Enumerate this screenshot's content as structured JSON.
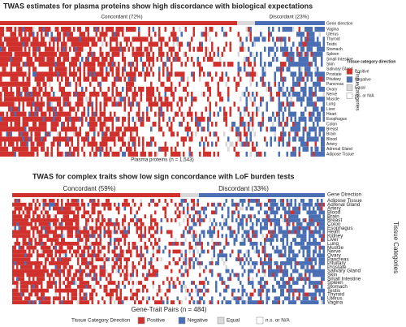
{
  "top_panel": {
    "title": "TWAS estimates for plasma proteins show high discordance with  biological expectations",
    "concordant_label": "Concordant (72%)",
    "discordant_label": "Discordant (23%)",
    "gene_direction_label": "Gene direction",
    "row_labels": [
      "Vagina",
      "Uterus",
      "Thyroid",
      "Testis",
      "Stomach",
      "Spleen",
      "Small Intestine",
      "Skin",
      "Salivary Gland",
      "Prostate",
      "Pituitary",
      "Pancreas",
      "Ovary",
      "Nerve",
      "Muscle",
      "Lung",
      "Liver",
      "Heart",
      "Esophagus",
      "Colon",
      "Breast",
      "Brain",
      "Blood",
      "Artery",
      "Adrenal Gland",
      "Adipose Tissue"
    ],
    "x_label": "Plasma proteins (n = 1,543)",
    "y_label": "Tissue categories",
    "legend": {
      "title": "Tissue category direction",
      "items": [
        "Positive",
        "Negative",
        "Equal",
        "n.s. or N/A"
      ]
    }
  },
  "bottom_panel": {
    "title": "TWAS for complex traits show low sign concordance with LoF burden tests",
    "concordant_label": "Concordant (59%)",
    "discordant_label": "Discordant (33%)",
    "gene_direction_label": "Gene Direction",
    "row_labels": [
      "Adipose Tissue",
      "Adrenal Gland",
      "Artery",
      "Blood",
      "Brain",
      "Breast",
      "Colon",
      "Esophagus",
      "Heart",
      "Kidney",
      "Liver",
      "Lung",
      "Muscle",
      "Nerve",
      "Ovary",
      "Pancreas",
      "Pituitary",
      "Prostate",
      "Salivary Gland",
      "Skin",
      "Small Intestine",
      "Spleen",
      "Stomach",
      "Testis",
      "Thyroid",
      "Uterus",
      "Vagina"
    ],
    "x_label": "Gene-Trait Pairs (n = 484)",
    "y_label": "Tissue Categories",
    "legend": {
      "title": "Tissue Category Direction",
      "items": [
        "Positive",
        "Negative",
        "Equal",
        "n.s. or N/A"
      ]
    }
  }
}
